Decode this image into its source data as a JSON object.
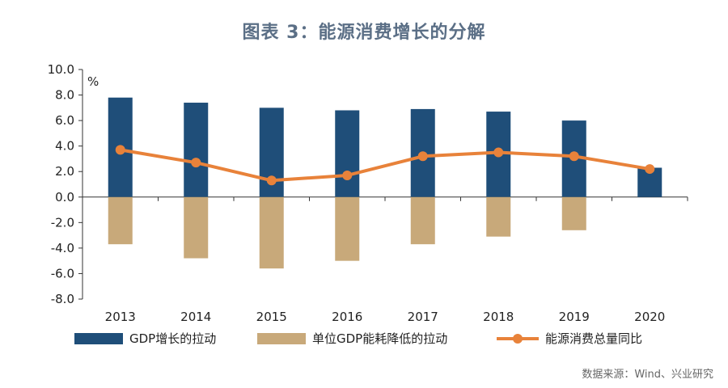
{
  "chart_data": {
    "type": "bar",
    "title": "图表 3：能源消费增长的分解",
    "ylabel": "%",
    "xlabel": "",
    "categories": [
      "2013",
      "2014",
      "2015",
      "2016",
      "2017",
      "2018",
      "2019",
      "2020"
    ],
    "ylim": [
      -8.0,
      10.0
    ],
    "yticks": [
      "10.0",
      "8.0",
      "6.0",
      "4.0",
      "2.0",
      "0.0",
      "-2.0",
      "-4.0",
      "-6.0",
      "-8.0"
    ],
    "ytick_values": [
      10,
      8,
      6,
      4,
      2,
      0,
      -2,
      -4,
      -6,
      -8
    ],
    "grid": false,
    "legend_position": "bottom",
    "series": [
      {
        "name": "GDP增长的拉动",
        "type": "bar",
        "color": "#1f4e79",
        "values": [
          7.8,
          7.4,
          7.0,
          6.8,
          6.9,
          6.7,
          6.0,
          2.3
        ]
      },
      {
        "name": "单位GDP能耗降低的拉动",
        "type": "bar",
        "color": "#c8a97a",
        "values": [
          -3.7,
          -4.8,
          -5.6,
          -5.0,
          -3.7,
          -3.1,
          -2.6,
          0.0
        ]
      },
      {
        "name": "能源消费总量同比",
        "type": "line",
        "color": "#e8823a",
        "values": [
          3.7,
          2.7,
          1.3,
          1.7,
          3.2,
          3.5,
          3.2,
          2.2
        ]
      }
    ]
  },
  "source_note": "数据来源：Wind、兴业研究"
}
